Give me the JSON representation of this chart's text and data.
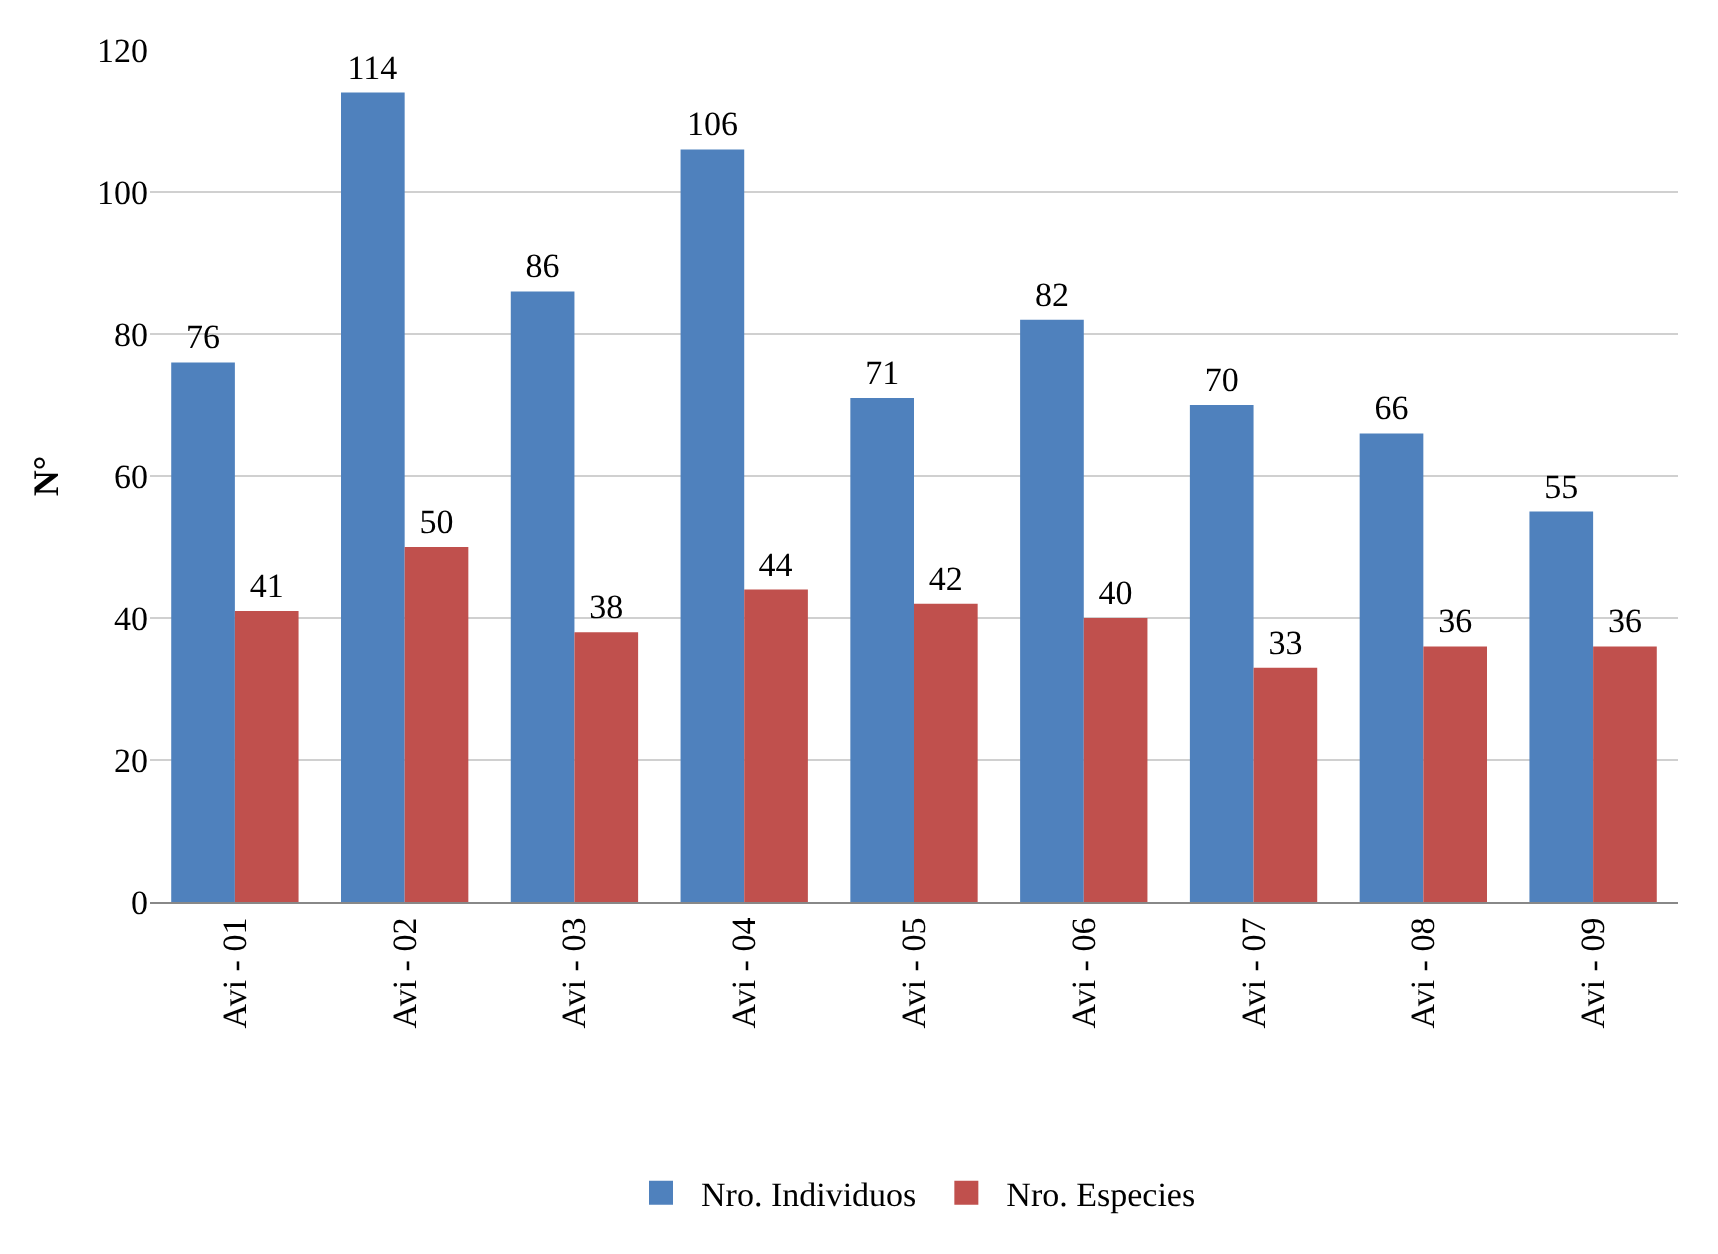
{
  "chart_data": {
    "type": "bar",
    "ylabel": "N°",
    "categories": [
      "Avi - 01",
      "Avi - 02",
      "Avi - 03",
      "Avi - 04",
      "Avi - 05",
      "Avi - 06",
      "Avi - 07",
      "Avi - 08",
      "Avi - 09"
    ],
    "series": [
      {
        "name": "Nro. Individuos",
        "color": "#4f81bd",
        "values": [
          76,
          114,
          86,
          106,
          71,
          82,
          70,
          66,
          55
        ]
      },
      {
        "name": "Nro. Especies",
        "color": "#c0504d",
        "values": [
          41,
          50,
          38,
          44,
          42,
          40,
          33,
          36,
          36
        ]
      }
    ],
    "ylim": [
      0,
      120
    ],
    "yticks": [
      0,
      20,
      40,
      60,
      80,
      100,
      120
    ],
    "grid": "y",
    "legend": "bottom",
    "data_labels": true
  }
}
